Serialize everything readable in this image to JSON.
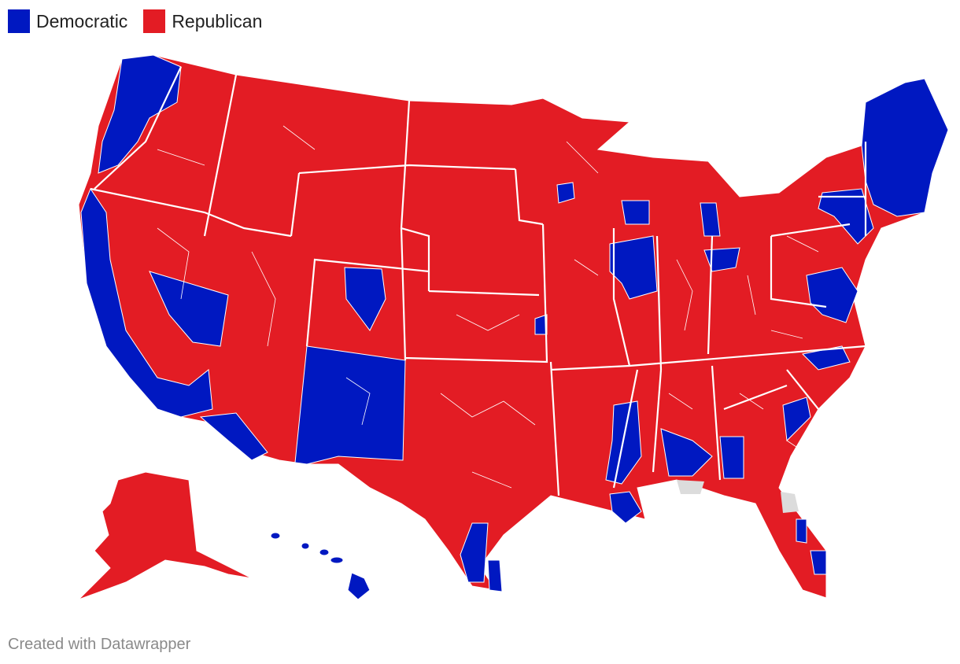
{
  "legend": {
    "items": [
      {
        "label": "Democratic",
        "color": "#0018c1"
      },
      {
        "label": "Republican",
        "color": "#e31c24"
      }
    ]
  },
  "footer": "Created with Datawrapper"
}
